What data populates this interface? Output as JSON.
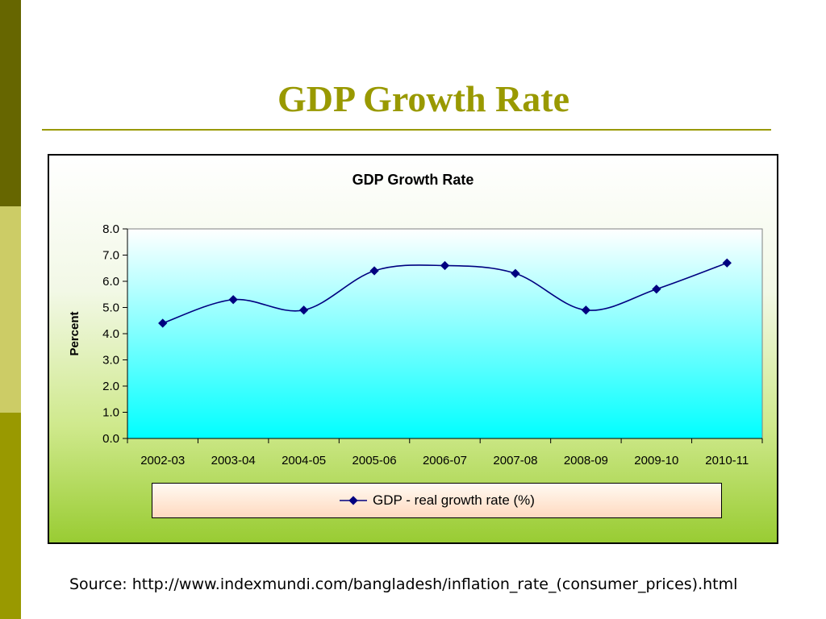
{
  "slide": {
    "title": "GDP Growth Rate",
    "source": "Source: http://www.indexmundi.com/bangladesh/inflation_rate_(consumer_prices).html"
  },
  "colors": {
    "accent": "#999900",
    "series": "#000080",
    "plot_top": "#ffffff",
    "plot_bottom": "#00ffff"
  },
  "chart_data": {
    "type": "line",
    "title": "GDP Growth Rate",
    "xlabel": "",
    "ylabel": "Percent",
    "ylim": [
      0,
      8
    ],
    "ytick_step": 1,
    "categories": [
      "2002-03",
      "2003-04",
      "2004-05",
      "2005-06",
      "2006-07",
      "2007-08",
      "2008-09",
      "2009-10",
      "2010-11"
    ],
    "series": [
      {
        "name": "GDP - real growth rate (%)",
        "values": [
          4.4,
          5.3,
          4.9,
          6.4,
          6.6,
          6.3,
          4.9,
          5.7,
          6.7
        ]
      }
    ],
    "grid": false,
    "legend": "bottom"
  }
}
